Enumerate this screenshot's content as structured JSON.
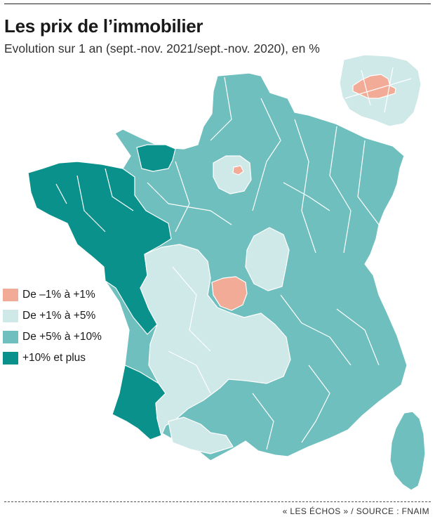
{
  "header": {
    "title": "Les prix de l’immobilier",
    "subtitle": "Evolution sur 1 an (sept.-nov. 2021/sept.-nov. 2020), en %"
  },
  "legend": {
    "items": [
      {
        "label": "De –1% à +1%",
        "color": "#f2ab96"
      },
      {
        "label": "De +1% à +5%",
        "color": "#cfe8e8"
      },
      {
        "label": "De +5% à +10%",
        "color": "#6fbfbe"
      },
      {
        "label": "+10% et plus",
        "color": "#0a918b"
      }
    ]
  },
  "map": {
    "colors": {
      "low": "#f2ab96",
      "light": "#cfe8e8",
      "mid": "#6fbfbe",
      "high": "#0a918b",
      "border": "#ffffff"
    }
  },
  "footer": {
    "source": "« LES ÉCHOS » / SOURCE : FNAIM"
  }
}
